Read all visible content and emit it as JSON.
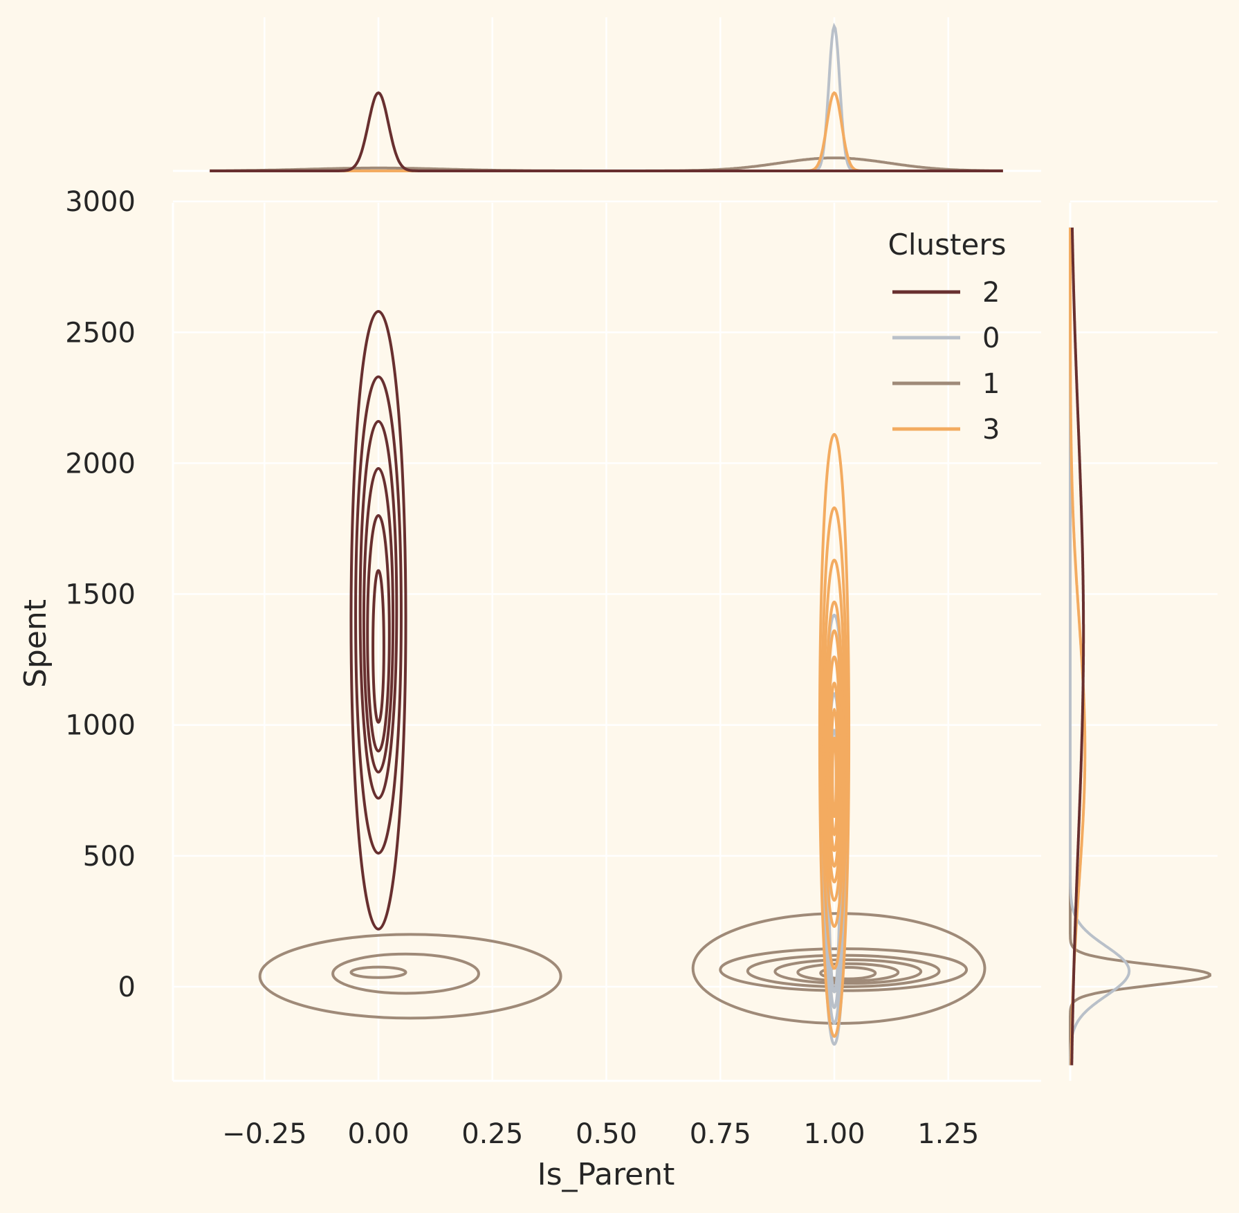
{
  "chart_data": {
    "type": "kde-joint",
    "xlabel": "Is_Parent",
    "ylabel": "Spent",
    "xlim": [
      -0.45,
      1.45
    ],
    "ylim": [
      -360,
      3000
    ],
    "x_ticks": [
      -0.25,
      0.0,
      0.25,
      0.5,
      0.75,
      1.0,
      1.25
    ],
    "x_tick_labels": [
      "−0.25",
      "0.00",
      "0.25",
      "0.50",
      "0.75",
      "1.00",
      "1.25"
    ],
    "y_ticks": [
      0,
      500,
      1000,
      1500,
      2000,
      2500,
      3000
    ],
    "y_tick_labels": [
      "0",
      "500",
      "1000",
      "1500",
      "2000",
      "2500",
      "3000"
    ],
    "grid": true,
    "legend": {
      "title": "Clusters",
      "placement": "top-right",
      "entries": [
        {
          "label": "2",
          "color": "#682f2f"
        },
        {
          "label": "0",
          "color": "#b9c0c9"
        },
        {
          "label": "1",
          "color": "#9f8a78"
        },
        {
          "label": "3",
          "color": "#f3ab60"
        }
      ]
    },
    "series": [
      {
        "name": "2",
        "color": "#682f2f",
        "contours": [
          {
            "cx": 0.0,
            "cy": 1400,
            "rx": 0.06,
            "ry": 1180
          },
          {
            "cx": 0.0,
            "cy": 1420,
            "rx": 0.05,
            "ry": 910
          },
          {
            "cx": 0.0,
            "cy": 1440,
            "rx": 0.04,
            "ry": 720
          },
          {
            "cx": 0.0,
            "cy": 1400,
            "rx": 0.032,
            "ry": 580
          },
          {
            "cx": 0.0,
            "cy": 1350,
            "rx": 0.024,
            "ry": 450
          },
          {
            "cx": 0.0,
            "cy": 1300,
            "rx": 0.012,
            "ry": 290
          }
        ],
        "marginal_x": {
          "center": 0.0,
          "spread": 0.022,
          "peak": 0.54
        },
        "marginal_y": {
          "center": 1350,
          "spread": 800,
          "peak": 0.09
        }
      },
      {
        "name": "0",
        "color": "#b9c0c9",
        "contours": [
          {
            "cx": 1.0,
            "cy": 600,
            "rx": 0.025,
            "ry": 820
          },
          {
            "cx": 1.0,
            "cy": 560,
            "rx": 0.02,
            "ry": 700
          },
          {
            "cx": 1.0,
            "cy": 520,
            "rx": 0.016,
            "ry": 600
          },
          {
            "cx": 1.0,
            "cy": 480,
            "rx": 0.012,
            "ry": 500
          }
        ],
        "marginal_x": {
          "center": 1.0,
          "spread": 0.012,
          "peak": 1.0
        },
        "marginal_y": {
          "center": 60,
          "spread": 95,
          "peak": 0.4
        }
      },
      {
        "name": "1",
        "color": "#9f8a78",
        "blobs": [
          {
            "cx": 0.07,
            "cy": 40,
            "rx": 0.33,
            "ry": 160
          },
          {
            "cx": 0.06,
            "cy": 50,
            "rx": 0.16,
            "ry": 75
          },
          {
            "cx": 0.0,
            "cy": 55,
            "rx": 0.06,
            "ry": 20
          },
          {
            "cx": 1.01,
            "cy": 70,
            "rx": 0.32,
            "ry": 210
          },
          {
            "cx": 1.02,
            "cy": 65,
            "rx": 0.27,
            "ry": 80
          },
          {
            "cx": 1.02,
            "cy": 60,
            "rx": 0.21,
            "ry": 60
          },
          {
            "cx": 1.03,
            "cy": 58,
            "rx": 0.16,
            "ry": 45
          },
          {
            "cx": 1.03,
            "cy": 55,
            "rx": 0.11,
            "ry": 33
          },
          {
            "cx": 1.03,
            "cy": 52,
            "rx": 0.06,
            "ry": 22
          }
        ],
        "marginal_x": [
          {
            "center": 0.0,
            "spread": 0.15,
            "peak": 0.02
          },
          {
            "center": 1.0,
            "spread": 0.12,
            "peak": 0.09
          }
        ],
        "marginal_y": {
          "center": 45,
          "spread": 38,
          "peak": 0.95
        }
      },
      {
        "name": "3",
        "color": "#f3ab60",
        "contours": [
          {
            "cx": 1.0,
            "cy": 960,
            "rx": 0.032,
            "ry": 1150
          },
          {
            "cx": 1.0,
            "cy": 950,
            "rx": 0.027,
            "ry": 880
          },
          {
            "cx": 1.0,
            "cy": 930,
            "rx": 0.023,
            "ry": 700
          },
          {
            "cx": 1.0,
            "cy": 900,
            "rx": 0.019,
            "ry": 570
          },
          {
            "cx": 1.0,
            "cy": 880,
            "rx": 0.016,
            "ry": 480
          },
          {
            "cx": 1.0,
            "cy": 860,
            "rx": 0.013,
            "ry": 400
          },
          {
            "cx": 1.0,
            "cy": 840,
            "rx": 0.01,
            "ry": 320
          },
          {
            "cx": 1.0,
            "cy": 820,
            "rx": 0.007,
            "ry": 240
          },
          {
            "cx": 1.0,
            "cy": 800,
            "rx": 0.004,
            "ry": 150
          }
        ],
        "marginal_x": {
          "center": 1.0,
          "spread": 0.016,
          "peak": 0.54
        },
        "marginal_y": {
          "center": 900,
          "spread": 500,
          "peak": 0.1
        }
      }
    ]
  }
}
